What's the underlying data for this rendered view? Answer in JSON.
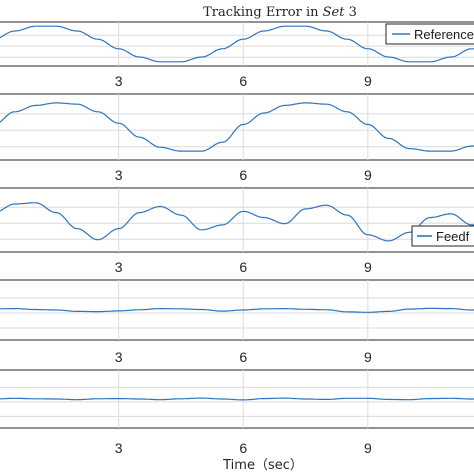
{
  "chart_data": [
    {
      "type": "line",
      "title_prefix": "Tracking Error in ",
      "title_set": "Set",
      "title_suffix": " 3",
      "xlabel": "",
      "ylabel": "",
      "xlim": [
        0,
        11.7
      ],
      "ylim": [
        -1.2,
        1.2
      ],
      "xticks": [
        3,
        6,
        9
      ],
      "xtick_labels": [
        "3",
        "6",
        "9"
      ],
      "grid": true,
      "legend": "Reference",
      "legend_position": "top-right",
      "series": [
        {
          "name": "Reference",
          "x": [
            0,
            0.5,
            1,
            1.5,
            2,
            2.5,
            3,
            3.5,
            4,
            4.5,
            5,
            5.5,
            6,
            6.5,
            7,
            7.5,
            8,
            8.5,
            9,
            9.5,
            10,
            10.5,
            11,
            11.5
          ],
          "y": [
            0.26,
            0.71,
            0.97,
            0.97,
            0.71,
            0.26,
            -0.26,
            -0.71,
            -0.97,
            -0.97,
            -0.71,
            -0.26,
            0.26,
            0.71,
            0.97,
            0.97,
            0.71,
            0.26,
            -0.26,
            -0.71,
            -0.97,
            -0.97,
            -0.71,
            -0.26
          ]
        }
      ]
    },
    {
      "type": "line",
      "xlim": [
        0,
        11.7
      ],
      "ylim": [
        -1.3,
        1.3
      ],
      "xticks": [
        3,
        6,
        9
      ],
      "xtick_labels": [
        "3",
        "6",
        "9"
      ],
      "grid": true,
      "series": [
        {
          "x": [
            0,
            0.5,
            1,
            1.5,
            2,
            2.5,
            3,
            3.5,
            4,
            4.5,
            5,
            5.5,
            6,
            6.5,
            7,
            7.5,
            8,
            8.5,
            9,
            9.5,
            10,
            10.5,
            11,
            11.5
          ],
          "y": [
            0.1,
            0.6,
            0.85,
            0.95,
            0.9,
            0.6,
            0.15,
            -0.4,
            -0.8,
            -0.95,
            -0.95,
            -0.6,
            0.1,
            0.55,
            0.85,
            0.95,
            0.9,
            0.6,
            0.1,
            -0.45,
            -0.85,
            -0.95,
            -0.95,
            -0.75
          ]
        }
      ]
    },
    {
      "type": "line",
      "xlim": [
        0,
        11.7
      ],
      "ylim": [
        -1.3,
        1.3
      ],
      "xticks": [
        3,
        6,
        9
      ],
      "xtick_labels": [
        "3",
        "6",
        "9"
      ],
      "grid": true,
      "legend": "Feedf",
      "legend_position": "bottom-right",
      "series": [
        {
          "name": "Feedf",
          "x": [
            0,
            0.5,
            1,
            1.5,
            2,
            2.5,
            3,
            3.5,
            4,
            4.5,
            5,
            5.5,
            6,
            6.5,
            7,
            7.5,
            8,
            8.5,
            9,
            9.5,
            10,
            10.5,
            11,
            11.5
          ],
          "y": [
            0.3,
            0.65,
            0.7,
            0.3,
            -0.35,
            -0.8,
            -0.35,
            0.3,
            0.55,
            0.2,
            -0.4,
            -0.2,
            0.35,
            0.1,
            -0.15,
            0.45,
            0.6,
            0.2,
            -0.6,
            -0.85,
            -0.5,
            0.1,
            0.25,
            -0.2
          ]
        }
      ]
    },
    {
      "type": "line",
      "xlim": [
        0,
        11.7
      ],
      "ylim": [
        -1.3,
        1.3
      ],
      "xticks": [
        3,
        6,
        9
      ],
      "xtick_labels": [
        "3",
        "6",
        "9"
      ],
      "grid": true,
      "series": [
        {
          "x": [
            0,
            0.5,
            1,
            1.5,
            2,
            2.5,
            3,
            3.5,
            4,
            4.5,
            5,
            5.5,
            6,
            6.5,
            7,
            7.5,
            8,
            8.5,
            9,
            9.5,
            10,
            10.5,
            11,
            11.5
          ],
          "y": [
            0.05,
            0.06,
            0.02,
            0,
            -0.06,
            -0.07,
            -0.04,
            0.01,
            0.06,
            0.05,
            0.02,
            -0.05,
            0,
            0.05,
            0.06,
            0.03,
            0.01,
            -0.08,
            -0.1,
            -0.06,
            0.04,
            0.07,
            0.06,
            0
          ]
        }
      ]
    },
    {
      "type": "line",
      "xlim": [
        0,
        11.7
      ],
      "ylim": [
        -1.3,
        1.3
      ],
      "xticks": [
        3,
        6,
        9
      ],
      "xtick_labels": [
        "3",
        "6",
        "9"
      ],
      "xlabel": "Time（sec）",
      "grid": true,
      "series": [
        {
          "x": [
            0,
            0.5,
            1,
            1.5,
            2,
            2.5,
            3,
            3.5,
            4,
            4.5,
            5,
            5.5,
            6,
            6.5,
            7,
            7.5,
            8,
            8.5,
            9,
            9.5,
            10,
            10.5,
            11,
            11.5
          ],
          "y": [
            0,
            0.03,
            0.01,
            0,
            -0.03,
            0.01,
            0.02,
            0,
            -0.03,
            0.01,
            0.04,
            0,
            -0.04,
            0.02,
            0.04,
            0,
            -0.02,
            0.03,
            0.03,
            -0.02,
            -0.03,
            0.02,
            0.03,
            0
          ]
        }
      ]
    }
  ]
}
